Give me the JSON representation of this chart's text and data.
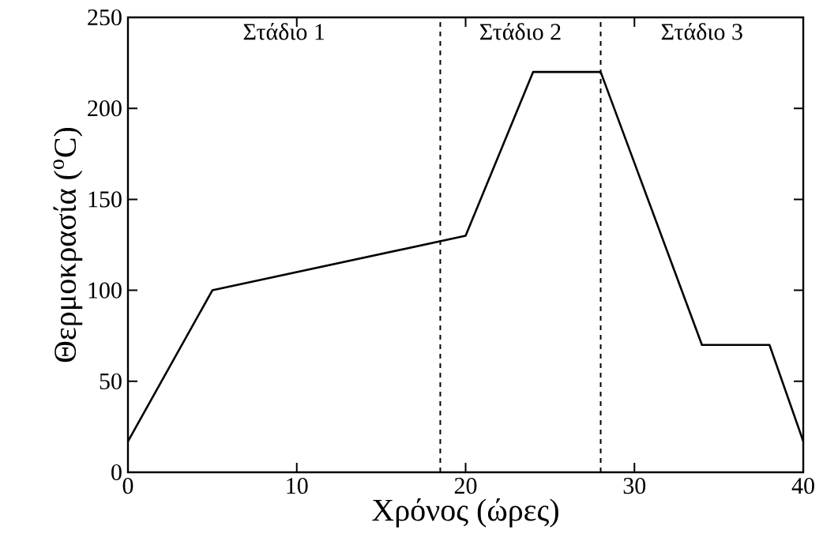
{
  "chart_data": {
    "type": "line",
    "xlabel": "Χρόνος (ώρες)",
    "ylabel": "Θερμοκρασία ($^{o}$C)",
    "x": [
      0,
      5,
      20,
      24,
      28,
      34,
      38,
      40
    ],
    "series": [
      {
        "color": "#000000",
        "values": [
          17,
          100,
          130,
          220,
          220,
          70,
          70,
          17
        ]
      }
    ],
    "xlim": [
      0,
      40
    ],
    "ylim": [
      0,
      250
    ],
    "xticks": [
      0,
      10,
      20,
      30,
      40
    ],
    "yticks": [
      0,
      50,
      100,
      150,
      200,
      250
    ],
    "ref_lines": [
      {
        "axis": "x",
        "value": 18.5,
        "color": "#000000",
        "line_style": "dashed"
      },
      {
        "axis": "x",
        "value": 28,
        "color": "#000000",
        "line_style": "dashed"
      }
    ],
    "annotations": [
      "Στάδιο 1",
      "Στάδιο 2",
      "Στάδιο 3"
    ],
    "marker": "none",
    "line_style": "solid",
    "grid": false
  }
}
